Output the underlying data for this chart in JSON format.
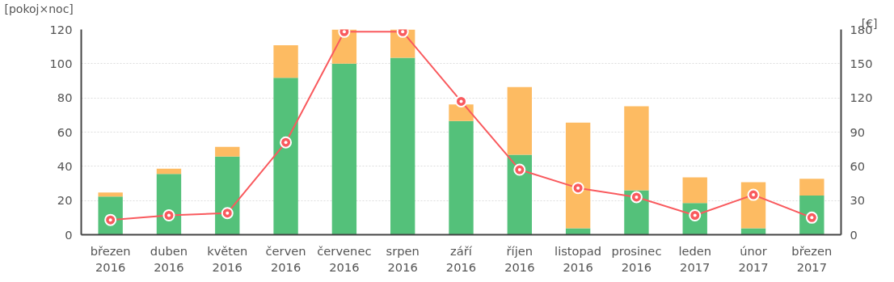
{
  "chart_data": {
    "type": "bar",
    "stacked": true,
    "ylabel": "[pokoj×noc]",
    "y2label": "[€]",
    "categories": [
      "březen\n2016",
      "duben\n2016",
      "květen\n2016",
      "červen\n2016",
      "červenec\n2016",
      "srpen\n2016",
      "září\n2016",
      "říjen\n2016",
      "listopad\n2016",
      "prosinec\n2016",
      "leden\n2017",
      "únor\n2017",
      "březen\n2017"
    ],
    "series": [
      {
        "color": "#54c17a",
        "values": [
          22.3,
          35.6,
          45.7,
          91.8,
          100,
          103.5,
          66.5,
          46.8,
          3.8,
          26,
          18.6,
          3.8,
          22.9
        ]
      },
      {
        "color": "#fdbb62",
        "values": [
          2.4,
          3,
          5.7,
          19,
          20,
          16.5,
          9.7,
          39.5,
          61.8,
          49.1,
          15,
          26.9,
          9.8
        ]
      },
      {
        "type": "line",
        "axis": "y2",
        "color": "#f95a5e",
        "marker": "circle",
        "values": [
          13,
          17,
          19,
          81,
          178,
          178,
          117,
          57,
          41,
          33,
          17,
          35,
          15
        ]
      }
    ],
    "ylim": [
      0,
      120
    ],
    "yticks": [
      0,
      20,
      40,
      60,
      80,
      100,
      120
    ],
    "y2lim": [
      0,
      180
    ],
    "y2ticks": [
      0,
      30,
      60,
      90,
      120,
      150,
      180
    ],
    "grid": "y"
  }
}
